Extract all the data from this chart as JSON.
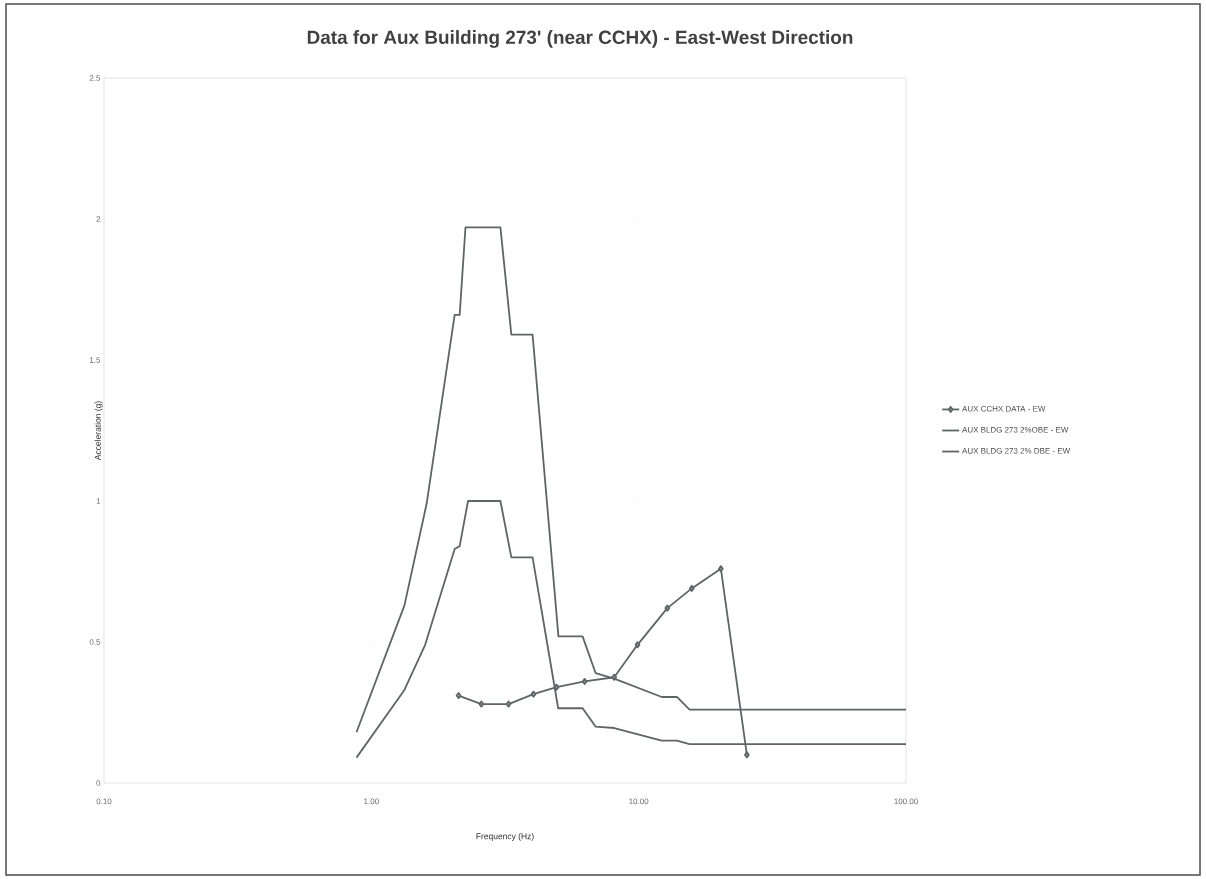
{
  "chart_data": {
    "type": "line",
    "title": "Data for Aux Building 273' (near CCHX) - East-West Direction",
    "xlabel": "Frequency (Hz)",
    "ylabel": "Acceleration (g)",
    "log": "x",
    "xlim": [
      0.1,
      100
    ],
    "xticks": [
      {
        "value": 0.1,
        "label": "0.10"
      },
      {
        "value": 1,
        "label": "1.00"
      },
      {
        "value": 10,
        "label": "10.00"
      },
      {
        "value": 100,
        "label": "100.00"
      }
    ],
    "ylim": [
      0,
      2.5
    ],
    "yticks": [
      0,
      0.5,
      1,
      1.5,
      2,
      2.5
    ],
    "grid": true,
    "legend": "right",
    "line_style": "solid",
    "series": [
      {
        "name": "AUX CCHX DATA - EW",
        "color": "#5d6569",
        "marker": "diamond",
        "x": [
          2.12,
          2.58,
          3.26,
          4.04,
          4.93,
          6.28,
          8.1,
          9.9,
          12.8,
          15.8,
          20.3,
          25.4
        ],
        "values": [
          0.31,
          0.28,
          0.28,
          0.315,
          0.34,
          0.36,
          0.375,
          0.49,
          0.62,
          0.69,
          0.76,
          0.1
        ]
      },
      {
        "name": "AUX BLDG 273 2%OBE - EW",
        "color": "#5d6569",
        "marker": "none",
        "x": [
          0.88,
          1.33,
          1.61,
          2.05,
          2.14,
          2.25,
          3.04,
          3.34,
          4.01,
          5.01,
          6.17,
          6.9,
          8.1,
          12.2,
          13.9,
          15.5,
          100
        ],
        "values": [
          0.18,
          0.63,
          0.99,
          1.66,
          1.66,
          1.97,
          1.97,
          1.59,
          1.59,
          0.52,
          0.52,
          0.39,
          0.37,
          0.305,
          0.305,
          0.26,
          0.26
        ]
      },
      {
        "name": "AUX BLDG 273 2% DBE - EW",
        "color": "#5d6569",
        "marker": "none",
        "x": [
          0.88,
          1.33,
          1.59,
          2.05,
          2.14,
          2.3,
          3.04,
          3.34,
          4.01,
          5.0,
          6.17,
          6.9,
          8.1,
          12.2,
          13.9,
          15.5,
          100
        ],
        "values": [
          0.09,
          0.33,
          0.49,
          0.83,
          0.84,
          1.0,
          1.0,
          0.8,
          0.8,
          0.265,
          0.265,
          0.2,
          0.195,
          0.15,
          0.15,
          0.138,
          0.138
        ]
      }
    ]
  }
}
